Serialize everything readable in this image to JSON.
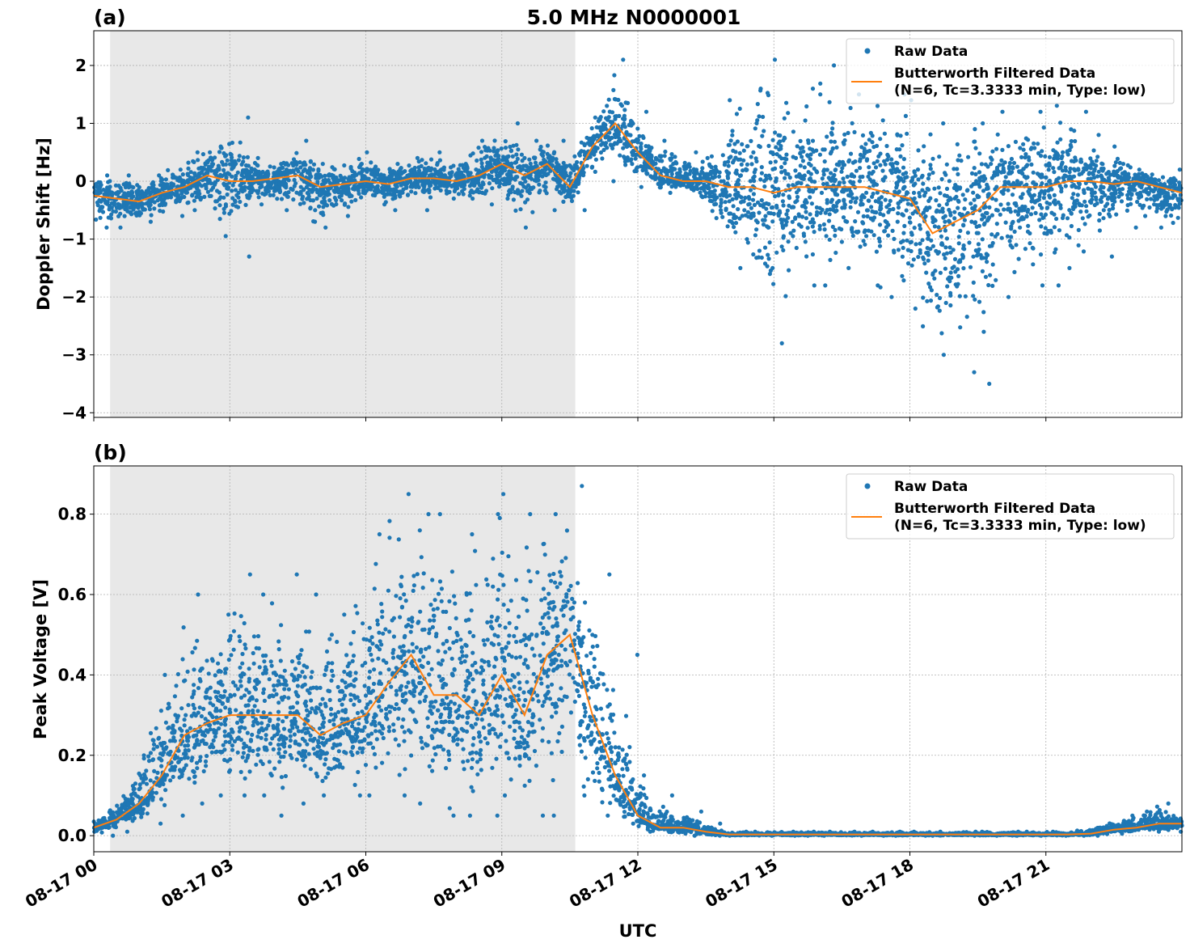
{
  "chart_data": [
    {
      "type": "scatter",
      "panel_label": "(a)",
      "title": "5.0 MHz N0000001",
      "xlabel": "",
      "ylabel": "Doppler Shift [Hz]",
      "xlim_hours": [
        0,
        24
      ],
      "ylim": [
        -4.08,
        2.6
      ],
      "yticks": [
        -4,
        -3,
        -2,
        -1,
        0,
        1,
        2
      ],
      "ytick_labels": [
        "−4",
        "−3",
        "−2",
        "−1",
        "0",
        "1",
        "2"
      ],
      "grid": true,
      "shaded_region_hours": [
        0.36,
        10.62
      ],
      "legend": {
        "placement": "top-right",
        "entries": [
          "Raw Data",
          "Butterworth Filtered Data",
          "(N=6, Tc=3.3333 min, Type: low)"
        ]
      },
      "colors": {
        "raw": "#1f77b4",
        "filtered": "#ff7f0e",
        "shade": "#e8e8e8"
      },
      "time_hours": [
        0,
        0.5,
        1,
        1.5,
        2,
        2.5,
        3,
        3.5,
        4,
        4.5,
        5,
        5.5,
        6,
        6.5,
        7,
        7.5,
        8,
        8.5,
        9,
        9.5,
        10,
        10.5,
        11,
        11.5,
        12,
        12.5,
        13,
        13.5,
        14,
        14.5,
        15,
        15.5,
        16,
        16.5,
        17,
        17.5,
        18,
        18.5,
        19,
        19.5,
        20,
        20.5,
        21,
        21.5,
        22,
        22.5,
        23,
        23.5,
        24
      ],
      "series": [
        {
          "name": "Butterworth Filtered Data",
          "values": [
            -0.25,
            -0.3,
            -0.35,
            -0.2,
            -0.1,
            0.1,
            0.0,
            0.0,
            0.05,
            0.1,
            -0.1,
            -0.05,
            0.0,
            -0.05,
            0.05,
            0.05,
            0.0,
            0.1,
            0.3,
            0.1,
            0.3,
            -0.1,
            0.6,
            1.0,
            0.5,
            0.1,
            0.0,
            0.0,
            -0.1,
            -0.1,
            -0.2,
            -0.1,
            -0.1,
            -0.1,
            -0.1,
            -0.2,
            -0.3,
            -0.9,
            -0.7,
            -0.5,
            -0.1,
            -0.1,
            -0.1,
            0.0,
            0.0,
            -0.05,
            0.0,
            -0.1,
            -0.2
          ]
        },
        {
          "name": "Raw Data",
          "range_low": [
            -0.8,
            -0.8,
            -0.7,
            -0.6,
            -0.5,
            -0.4,
            -1.3,
            -0.4,
            -0.5,
            -0.7,
            -0.8,
            -0.6,
            -0.4,
            -0.5,
            -0.5,
            -0.3,
            -0.3,
            -0.4,
            -0.3,
            -0.8,
            -0.5,
            -0.5,
            0.0,
            0.3,
            -0.1,
            -0.2,
            -0.1,
            -0.5,
            -1.5,
            -1.5,
            -2.8,
            -1.8,
            -1.8,
            -1.5,
            -1.8,
            -2.0,
            -2.2,
            -3.0,
            -3.3,
            -3.5,
            -2.0,
            -1.8,
            -1.8,
            -1.5,
            -1.3,
            -0.8,
            -0.6,
            -0.8,
            -0.8
          ],
          "range_high": [
            0.1,
            0.1,
            0.1,
            0.2,
            0.5,
            0.6,
            1.1,
            0.4,
            0.3,
            0.7,
            0.3,
            0.3,
            0.5,
            0.3,
            0.4,
            0.5,
            0.3,
            0.7,
            1.0,
            0.7,
            0.7,
            0.5,
            1.1,
            2.1,
            1.2,
            0.7,
            0.5,
            0.4,
            1.4,
            1.6,
            2.1,
            1.6,
            2.0,
            1.5,
            1.3,
            1.5,
            1.4,
            1.0,
            0.9,
            1.0,
            1.2,
            1.2,
            1.5,
            1.2,
            0.8,
            0.6,
            0.2,
            0.2,
            0.1
          ]
        }
      ]
    },
    {
      "type": "scatter",
      "panel_label": "(b)",
      "xlabel": "UTC",
      "ylabel": "Peak Voltage [V]",
      "xlim_hours": [
        0,
        24
      ],
      "ylim": [
        -0.04,
        0.92
      ],
      "yticks": [
        0.0,
        0.2,
        0.4,
        0.6,
        0.8
      ],
      "ytick_labels": [
        "0.0",
        "0.2",
        "0.4",
        "0.6",
        "0.8"
      ],
      "xticks_hours": [
        0,
        3,
        6,
        9,
        12,
        15,
        18,
        21
      ],
      "xtick_labels": [
        "08-17 00",
        "08-17 03",
        "08-17 06",
        "08-17 09",
        "08-17 12",
        "08-17 15",
        "08-17 18",
        "08-17 21"
      ],
      "grid": true,
      "shaded_region_hours": [
        0.36,
        10.62
      ],
      "legend": {
        "placement": "top-right",
        "entries": [
          "Raw Data",
          "Butterworth Filtered Data",
          "(N=6, Tc=3.3333 min, Type: low)"
        ]
      },
      "colors": {
        "raw": "#1f77b4",
        "filtered": "#ff7f0e",
        "shade": "#e8e8e8"
      },
      "time_hours": [
        0,
        0.5,
        1,
        1.5,
        2,
        2.5,
        3,
        3.5,
        4,
        4.5,
        5,
        5.5,
        6,
        6.5,
        7,
        7.5,
        8,
        8.5,
        9,
        9.5,
        10,
        10.5,
        11,
        11.5,
        12,
        12.5,
        13,
        13.5,
        14,
        14.5,
        15,
        15.5,
        16,
        16.5,
        17,
        17.5,
        18,
        18.5,
        19,
        19.5,
        20,
        20.5,
        21,
        21.5,
        22,
        22.5,
        23,
        23.5,
        24
      ],
      "series": [
        {
          "name": "Butterworth Filtered Data",
          "values": [
            0.02,
            0.04,
            0.08,
            0.15,
            0.25,
            0.28,
            0.3,
            0.3,
            0.3,
            0.3,
            0.25,
            0.28,
            0.3,
            0.38,
            0.45,
            0.35,
            0.35,
            0.3,
            0.4,
            0.3,
            0.45,
            0.5,
            0.3,
            0.15,
            0.05,
            0.02,
            0.02,
            0.01,
            0.003,
            0.003,
            0.003,
            0.003,
            0.003,
            0.003,
            0.003,
            0.003,
            0.003,
            0.003,
            0.003,
            0.003,
            0.003,
            0.003,
            0.003,
            0.003,
            0.005,
            0.015,
            0.02,
            0.03,
            0.03
          ]
        },
        {
          "name": "Raw Data",
          "range_low": [
            0.0,
            0.01,
            0.03,
            0.05,
            0.08,
            0.1,
            0.1,
            0.1,
            0.05,
            0.08,
            0.1,
            0.1,
            0.1,
            0.1,
            0.08,
            0.05,
            0.05,
            0.05,
            0.1,
            0.05,
            0.05,
            0.1,
            0.05,
            0.03,
            0.01,
            0.01,
            0.0,
            0.0,
            0,
            0,
            0,
            0,
            0,
            0,
            0,
            0,
            0,
            0,
            0,
            0,
            0,
            0,
            0,
            0,
            0,
            0.005,
            0.01,
            0.01,
            0.01
          ],
          "range_high": [
            0.05,
            0.08,
            0.2,
            0.4,
            0.6,
            0.55,
            0.65,
            0.6,
            0.65,
            0.6,
            0.5,
            0.55,
            0.75,
            0.85,
            0.8,
            0.8,
            0.75,
            0.8,
            0.85,
            0.8,
            0.8,
            0.87,
            0.65,
            0.45,
            0.15,
            0.1,
            0.06,
            0.03,
            0.01,
            0.01,
            0.01,
            0.01,
            0.01,
            0.01,
            0.01,
            0.01,
            0.01,
            0.01,
            0.01,
            0.01,
            0.01,
            0.01,
            0.01,
            0.01,
            0.02,
            0.04,
            0.06,
            0.08,
            0.05
          ]
        }
      ]
    }
  ]
}
